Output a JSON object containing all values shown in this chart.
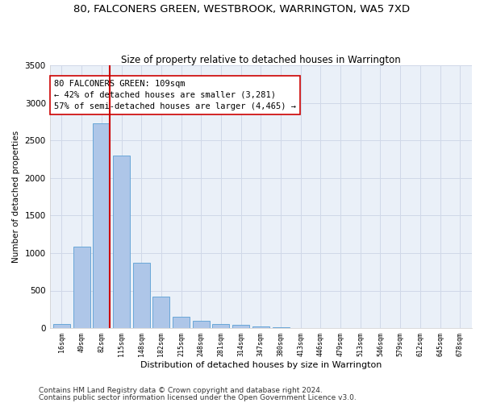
{
  "title": "80, FALCONERS GREEN, WESTBROOK, WARRINGTON, WA5 7XD",
  "subtitle": "Size of property relative to detached houses in Warrington",
  "xlabel": "Distribution of detached houses by size in Warrington",
  "ylabel": "Number of detached properties",
  "footer1": "Contains HM Land Registry data © Crown copyright and database right 2024.",
  "footer2": "Contains public sector information licensed under the Open Government Licence v3.0.",
  "categories": [
    "16sqm",
    "49sqm",
    "82sqm",
    "115sqm",
    "148sqm",
    "182sqm",
    "215sqm",
    "248sqm",
    "281sqm",
    "314sqm",
    "347sqm",
    "380sqm",
    "413sqm",
    "446sqm",
    "479sqm",
    "513sqm",
    "546sqm",
    "579sqm",
    "612sqm",
    "645sqm",
    "678sqm"
  ],
  "values": [
    50,
    1090,
    2730,
    2300,
    870,
    420,
    155,
    95,
    55,
    40,
    20,
    10,
    5,
    2,
    1,
    0,
    0,
    0,
    0,
    0,
    0
  ],
  "bar_color": "#aec6e8",
  "bar_edge_color": "#5a9fd4",
  "grid_color": "#d0d8e8",
  "background_color": "#eaf0f8",
  "vline_color": "#cc0000",
  "annotation_text": "80 FALCONERS GREEN: 109sqm\n← 42% of detached houses are smaller (3,281)\n57% of semi-detached houses are larger (4,465) →",
  "annotation_box_color": "#ffffff",
  "annotation_box_edge_color": "#cc0000",
  "ylim": [
    0,
    3500
  ],
  "yticks": [
    0,
    500,
    1000,
    1500,
    2000,
    2500,
    3000,
    3500
  ],
  "title_fontsize": 9.5,
  "subtitle_fontsize": 8.5,
  "annotation_fontsize": 7.5,
  "footer_fontsize": 6.5,
  "ylabel_fontsize": 7.5,
  "xlabel_fontsize": 8.0,
  "ytick_fontsize": 7.5,
  "xtick_fontsize": 6.0
}
